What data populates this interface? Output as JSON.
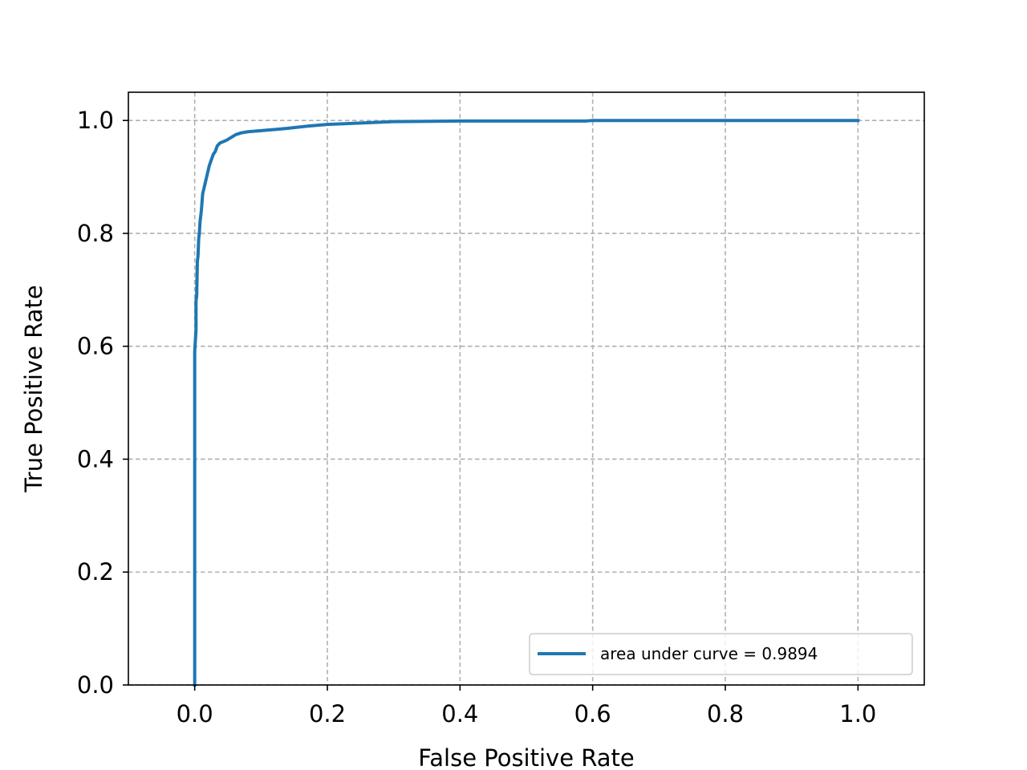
{
  "chart_data": {
    "type": "line",
    "title": "",
    "xlabel": "False Positive Rate",
    "ylabel": "True Positive Rate",
    "xlim": [
      -0.1,
      1.1
    ],
    "ylim": [
      0.0,
      1.05
    ],
    "xticks": [
      "0.0",
      "0.2",
      "0.4",
      "0.6",
      "0.8",
      "1.0"
    ],
    "yticks": [
      "0.0",
      "0.2",
      "0.4",
      "0.6",
      "0.8",
      "1.0"
    ],
    "xtick_values": [
      0.0,
      0.2,
      0.4,
      0.6,
      0.8,
      1.0
    ],
    "ytick_values": [
      0.0,
      0.2,
      0.4,
      0.6,
      0.8,
      1.0
    ],
    "grid": true,
    "legend_position": "lower-right",
    "series": [
      {
        "name": "area under curve = 0.9894",
        "color": "#1f77b4",
        "x": [
          0.0,
          0.0,
          0.001,
          0.002,
          0.002,
          0.003,
          0.004,
          0.005,
          0.006,
          0.007,
          0.008,
          0.01,
          0.012,
          0.014,
          0.016,
          0.018,
          0.02,
          0.022,
          0.025,
          0.028,
          0.031,
          0.034,
          0.038,
          0.042,
          0.048,
          0.055,
          0.062,
          0.07,
          0.08,
          0.1,
          0.12,
          0.14,
          0.17,
          0.2,
          0.24,
          0.3,
          0.4,
          0.59,
          0.6,
          0.8,
          1.0
        ],
        "y": [
          0.0,
          0.59,
          0.61,
          0.63,
          0.68,
          0.69,
          0.75,
          0.76,
          0.79,
          0.8,
          0.82,
          0.84,
          0.87,
          0.88,
          0.89,
          0.9,
          0.91,
          0.92,
          0.93,
          0.94,
          0.945,
          0.955,
          0.96,
          0.962,
          0.965,
          0.97,
          0.975,
          0.978,
          0.98,
          0.982,
          0.984,
          0.986,
          0.99,
          0.993,
          0.995,
          0.998,
          0.999,
          0.999,
          1.0,
          1.0,
          1.0
        ]
      }
    ]
  }
}
